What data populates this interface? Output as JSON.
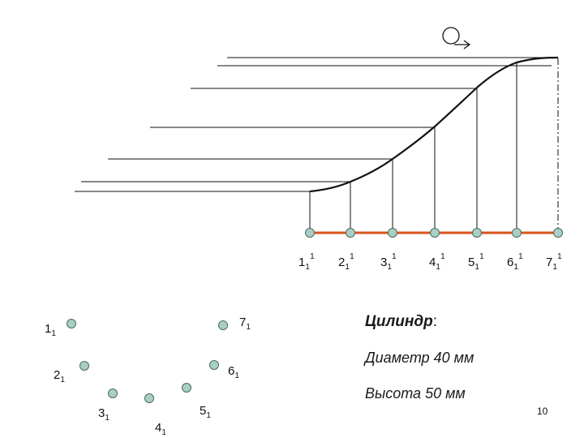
{
  "diagram": {
    "view_marker": "Q",
    "profile_points": [
      {
        "name": "1",
        "label": "1",
        "sub": "1",
        "sup": "1"
      },
      {
        "name": "2",
        "label": "2",
        "sub": "1",
        "sup": "1"
      },
      {
        "name": "3",
        "label": "3",
        "sub": "1",
        "sup": "1"
      },
      {
        "name": "4",
        "label": "4",
        "sub": "1",
        "sup": "1"
      },
      {
        "name": "5",
        "label": "5",
        "sub": "1",
        "sup": "1"
      },
      {
        "name": "6",
        "label": "6",
        "sub": "1",
        "sup": "1"
      },
      {
        "name": "7",
        "label": "7",
        "sub": "1",
        "sup": "1"
      }
    ],
    "plan_points": [
      {
        "name": "1",
        "label": "1",
        "sub": "1"
      },
      {
        "name": "2",
        "label": "2",
        "sub": "1"
      },
      {
        "name": "3",
        "label": "3",
        "sub": "1"
      },
      {
        "name": "4",
        "label": "4",
        "sub": "1"
      },
      {
        "name": "5",
        "label": "5",
        "sub": "1"
      },
      {
        "name": "6",
        "label": "6",
        "sub": "1"
      },
      {
        "name": "7",
        "label": "7",
        "sub": "1"
      }
    ],
    "colors": {
      "line": "#111111",
      "base_line": "#d9531e",
      "point_fill": "#a9cec3",
      "point_stroke": "#4a6a60"
    }
  },
  "info": {
    "title": "Цилиндр",
    "title_suffix": ":",
    "diameter": "Диаметр 40 мм",
    "height": "Высота 50 мм"
  },
  "page_number": "10"
}
